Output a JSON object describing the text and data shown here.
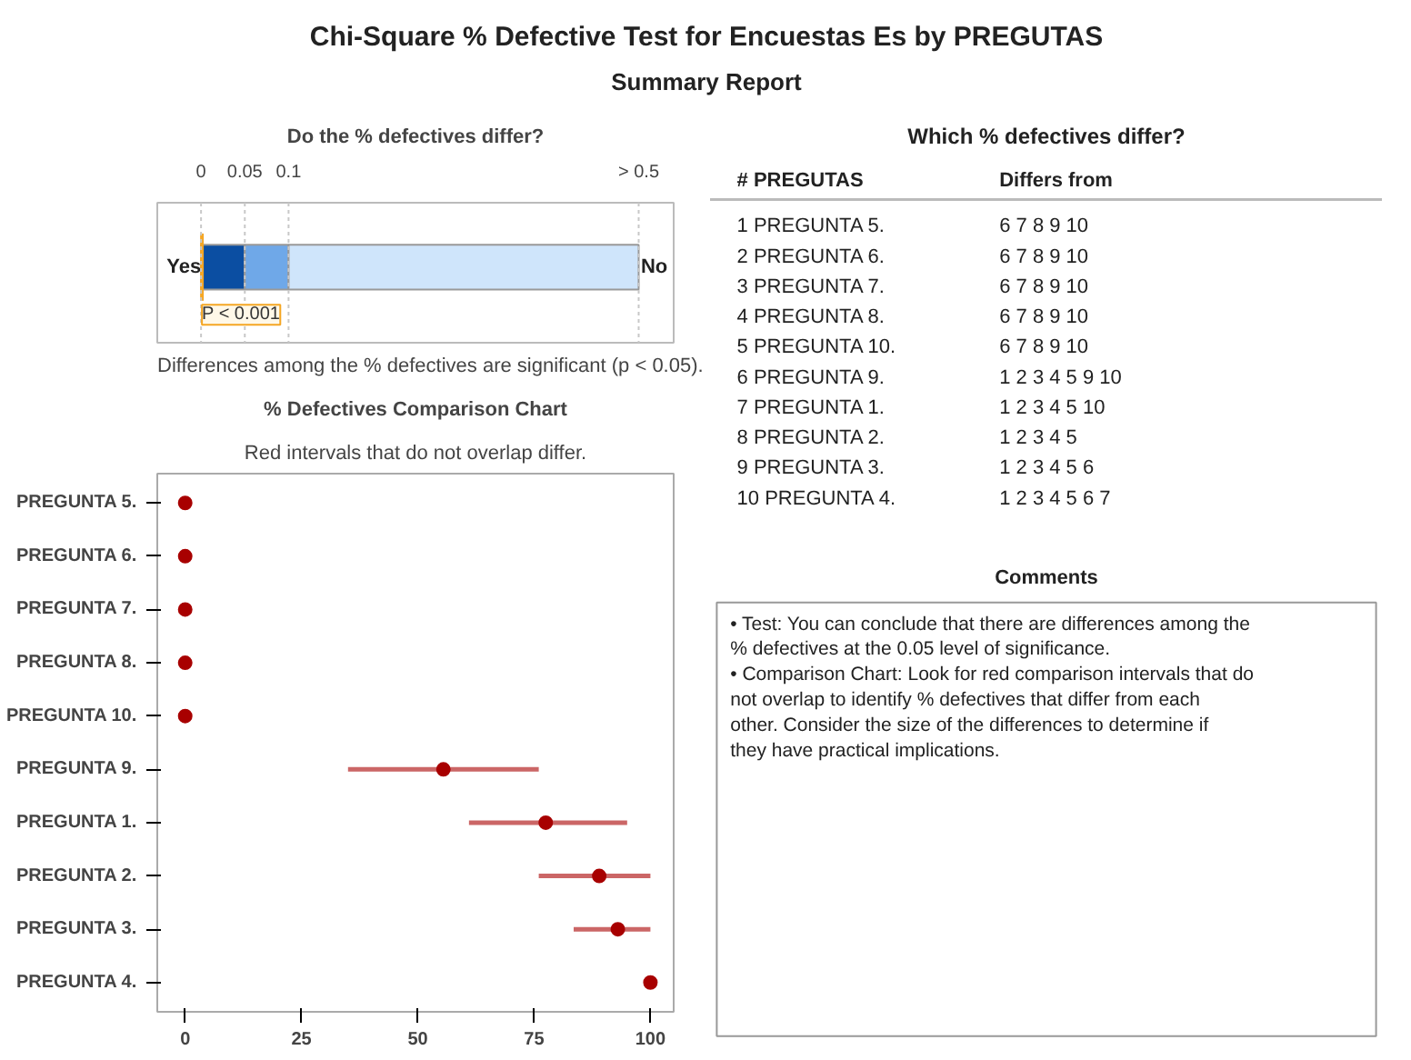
{
  "chart_data": [
    {
      "type": "other",
      "title": "Chi-Square % Defective Test for Encuestas Es by PREGUTAS",
      "subtitle": "Summary Report"
    },
    {
      "type": "bar",
      "orientation": "horizontal",
      "stacked": true,
      "title": "Do the % defectives differ?",
      "xlim": [
        0,
        0.5
      ],
      "xticks": [
        0,
        0.05,
        0.1,
        {
          "value": 0.5,
          "label": "> 0.5"
        }
      ],
      "categories": [
        null
      ],
      "series": [
        {
          "color": "#0b4ea2",
          "values": [
            0.05
          ]
        },
        {
          "color": "#6fa8e8",
          "values": [
            0.05
          ]
        },
        {
          "color": "#cfe5fb",
          "values": [
            0.4
          ]
        }
      ],
      "ref_lines": [
        {
          "axis": "x",
          "value": 0.001,
          "label": "P < 0.001",
          "color": "#f5a623"
        }
      ],
      "annotations": [
        "Yes",
        "No",
        "Differences among the % defectives are significant (p < 0.05)."
      ]
    },
    {
      "type": "other",
      "title": "Which % defectives differ?",
      "annotations": [
        "#",
        "PREGUTAS",
        "Differs from",
        "1",
        "PREGUNTA 5.",
        "6  7  8  9  10",
        "2",
        "PREGUNTA 6.",
        "6  7  8  9  10",
        "3",
        "PREGUNTA 7.",
        "6  7  8  9  10",
        "4",
        "PREGUNTA 8.",
        "6  7  8  9  10",
        "5",
        "PREGUNTA 10.",
        "6  7  8  9  10",
        "6",
        "PREGUNTA 9.",
        "1  2  3  4  5  9  10",
        "7",
        "PREGUNTA 1.",
        "1  2  3  4  5  10",
        "8",
        "PREGUNTA 2.",
        "1  2  3  4  5",
        "9",
        "PREGUNTA 3.",
        "1  2  3  4  5  6",
        "10",
        "PREGUNTA 4.",
        "1  2  3  4  5  6  7"
      ]
    },
    {
      "type": "scatter",
      "orientation": "horizontal",
      "title": "% Defectives Comparison Chart",
      "subtitle": "Red intervals that do not overlap differ.",
      "categories": [
        "PREGUNTA 5.",
        "PREGUNTA 6.",
        "PREGUNTA 7.",
        "PREGUNTA 8.",
        "PREGUNTA 10.",
        "PREGUNTA 9.",
        "PREGUNTA 1.",
        "PREGUNTA 2.",
        "PREGUNTA 3.",
        "PREGUNTA 4."
      ],
      "values": [
        0,
        0,
        0,
        0,
        0,
        55.5,
        77.5,
        89,
        93,
        100
      ],
      "errors": [
        null,
        null,
        null,
        null,
        null,
        [
          35,
          76
        ],
        [
          61,
          95
        ],
        [
          76,
          100
        ],
        [
          83.5,
          100
        ],
        null
      ],
      "color": "#a80000",
      "marker": "circle",
      "grid": false,
      "xlim": [
        -6,
        105
      ],
      "xticks": [
        0,
        25,
        50,
        75,
        100
      ]
    },
    {
      "type": "other",
      "title": "Comments",
      "annotations": [
        "• Test: You can conclude that there are differences among the % defectives at the 0.05 level of significance.",
        "• Comparison Chart: Look for red comparison intervals that do not overlap to identify % defectives that differ from each other. Consider the size of the differences to determine if they have practical implications."
      ]
    }
  ]
}
